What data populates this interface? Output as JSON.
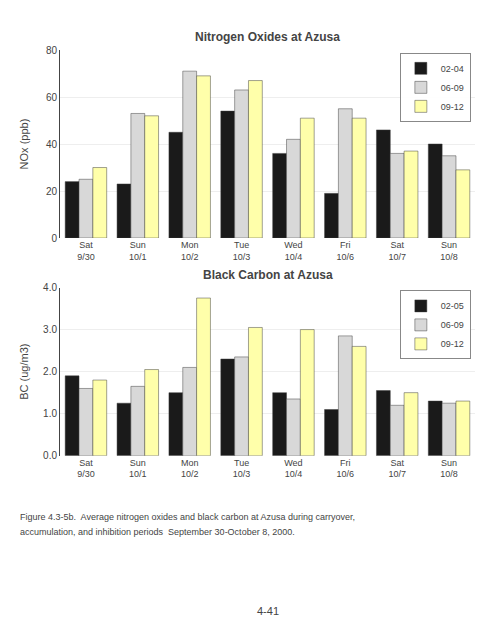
{
  "chart_data": [
    {
      "type": "bar",
      "title": "Nitrogen Oxides at Azusa",
      "categories": [
        "Sat\n9/30",
        "Sun\n10/1",
        "Mon\n10/2",
        "Tue\n10/3",
        "Wed\n10/4",
        "Fri\n10/6",
        "Sat\n10/7",
        "Sun\n10/8"
      ],
      "series": [
        {
          "name": "02-04",
          "color": "#1a1a1a",
          "values": [
            24,
            23,
            45,
            54,
            36,
            19,
            46,
            40
          ]
        },
        {
          "name": "06-09",
          "color": "#d8d8d8",
          "values": [
            25,
            53,
            71,
            63,
            42,
            55,
            36,
            35
          ]
        },
        {
          "name": "09-12",
          "color": "#ffffaa",
          "values": [
            30,
            52,
            69,
            67,
            51,
            51,
            37,
            29
          ]
        }
      ],
      "ylabel": "NOx (ppb)",
      "ylim": [
        0,
        80
      ],
      "yticks": [
        0,
        20,
        40,
        60,
        80
      ],
      "grid": true,
      "legend": "upper right"
    },
    {
      "type": "bar",
      "title": "Black Carbon at Azusa",
      "categories": [
        "Sat\n9/30",
        "Sun\n10/1",
        "Mon\n10/2",
        "Tue\n10/3",
        "Wed\n10/4",
        "Fri\n10/6",
        "Sat\n10/7",
        "Sun\n10/8"
      ],
      "series": [
        {
          "name": "02-05",
          "color": "#1a1a1a",
          "values": [
            1.9,
            1.25,
            1.5,
            2.3,
            1.5,
            1.1,
            1.55,
            1.3
          ]
        },
        {
          "name": "06-09",
          "color": "#d8d8d8",
          "values": [
            1.6,
            1.65,
            2.1,
            2.35,
            1.35,
            2.85,
            1.2,
            1.25
          ]
        },
        {
          "name": "09-12",
          "color": "#ffffaa",
          "values": [
            1.8,
            2.05,
            3.75,
            3.05,
            3.0,
            2.6,
            1.5,
            1.3
          ]
        }
      ],
      "ylabel": "BC (ug/m3)",
      "ylim": [
        0.0,
        4.0
      ],
      "yticks": [
        {
          "value": 0,
          "label": "0.0"
        },
        {
          "value": 1,
          "label": "1.0"
        },
        {
          "value": 2,
          "label": "2.0"
        },
        {
          "value": 3,
          "label": "3.0"
        },
        {
          "value": 4,
          "label": "4.0"
        }
      ],
      "grid": true,
      "legend": "upper right"
    }
  ],
  "annotations": [
    "Figure 4.3-5b.  Average nitrogen oxides and black carbon at Azusa during carryover,",
    "accumulation, and inhibition periods  September 30-October 8, 2000.",
    "4-41"
  ]
}
